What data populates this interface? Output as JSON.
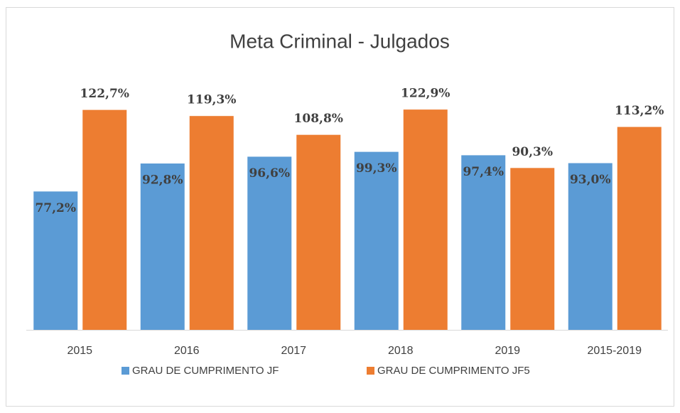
{
  "chart_data": {
    "type": "bar",
    "title": "Meta Criminal - Julgados",
    "categories": [
      "2015",
      "2016",
      "2017",
      "2018",
      "2019",
      "2015-2019"
    ],
    "series": [
      {
        "name": "GRAU DE CUMPRIMENTO JF",
        "color": "#5b9bd5",
        "values": [
          77.2,
          92.8,
          96.6,
          99.3,
          97.4,
          93.0
        ],
        "value_labels": [
          "77,2%",
          "92,8%",
          "96,6%",
          "99,3%",
          "97,4%",
          "93,0%"
        ]
      },
      {
        "name": "GRAU DE CUMPRIMENTO JF5",
        "color": "#ed7d31",
        "values": [
          122.7,
          119.3,
          108.8,
          122.9,
          90.3,
          113.2
        ],
        "value_labels": [
          "122,7%",
          "119,3%",
          "108,8%",
          "122,9%",
          "90,3%",
          "113,2%"
        ]
      }
    ],
    "ylim": [
      0,
      140
    ],
    "legend": "bottom"
  }
}
